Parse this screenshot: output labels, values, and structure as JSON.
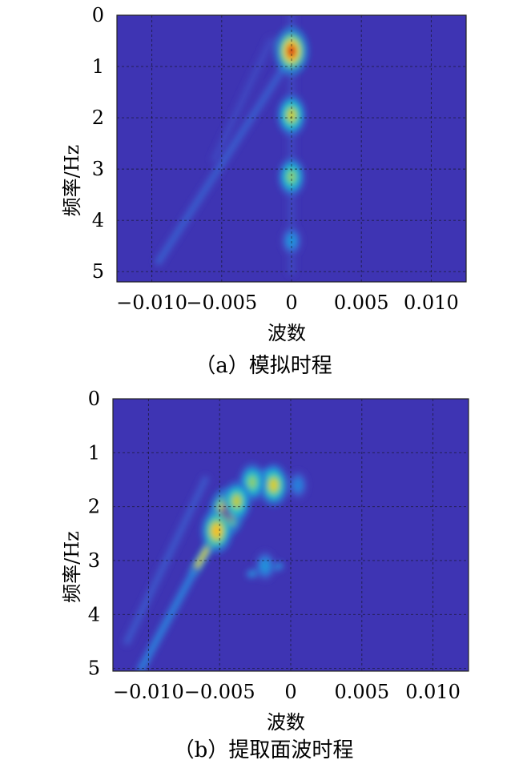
{
  "chart_data": [
    {
      "type": "heatmap",
      "panel": "a",
      "caption": "（a）模拟时程",
      "xlabel": "波数",
      "ylabel": "频率/Hz",
      "xlim": [
        -0.0125,
        0.0125
      ],
      "ylim": [
        0,
        5.2
      ],
      "y_inverted": true,
      "xticks": [
        -0.01,
        -0.005,
        0,
        0.005,
        0.01
      ],
      "xtick_labels": [
        "−0.010",
        "−0.005",
        "0",
        "0.005",
        "0.010"
      ],
      "yticks": [
        0,
        1,
        2,
        3,
        4,
        5
      ],
      "ytick_labels": [
        "0",
        "1",
        "2",
        "3",
        "4",
        "5"
      ],
      "grid": true,
      "colormap": "parula",
      "peaks": [
        {
          "x": 0.0,
          "y": 0.7,
          "value": 1.0
        },
        {
          "x": 0.0,
          "y": 1.95,
          "value": 0.72
        },
        {
          "x": 0.0,
          "y": 3.15,
          "value": 0.62
        },
        {
          "x": 0.0,
          "y": 4.4,
          "value": 0.3
        }
      ],
      "ridges": [
        {
          "x1": -0.0005,
          "y1": 1.0,
          "x2": -0.0095,
          "y2": 4.8,
          "value": 0.16
        },
        {
          "x1": -0.0015,
          "y1": 0.5,
          "x2": -0.0055,
          "y2": 2.8,
          "value": 0.1
        },
        {
          "x1": 0.0,
          "y1": 0.0,
          "x2": 0.0,
          "y2": 5.0,
          "value": 0.1
        }
      ]
    },
    {
      "type": "heatmap",
      "panel": "b",
      "caption": "（b）提取面波时程",
      "xlabel": "波数",
      "ylabel": "频率/Hz",
      "xlim": [
        -0.0125,
        0.0125
      ],
      "ylim": [
        0,
        5.05
      ],
      "y_inverted": true,
      "xticks": [
        -0.01,
        -0.005,
        0,
        0.005,
        0.01
      ],
      "xtick_labels": [
        "−0.010",
        "−0.005",
        "0",
        "0.005",
        "0.010"
      ],
      "yticks": [
        0,
        1,
        2,
        3,
        4,
        5
      ],
      "ytick_labels": [
        "0",
        "1",
        "2",
        "3",
        "4",
        "5"
      ],
      "grid": true,
      "colormap": "parula",
      "peaks": [
        {
          "x": -0.0045,
          "y": 2.1,
          "value": 1.0
        },
        {
          "x": -0.0052,
          "y": 2.45,
          "value": 0.85
        },
        {
          "x": -0.0012,
          "y": 1.6,
          "value": 0.75
        },
        {
          "x": -0.0027,
          "y": 1.55,
          "value": 0.62
        },
        {
          "x": -0.0038,
          "y": 1.9,
          "value": 0.7
        },
        {
          "x": -0.0018,
          "y": 3.1,
          "value": 0.3
        },
        {
          "x": 0.0005,
          "y": 1.6,
          "value": 0.25
        }
      ],
      "ridges": [
        {
          "x1": -0.0038,
          "y1": 1.85,
          "x2": -0.0068,
          "y2": 3.2,
          "value": 0.72
        },
        {
          "x1": -0.0068,
          "y1": 3.2,
          "x2": -0.0105,
          "y2": 5.0,
          "value": 0.25
        },
        {
          "x1": -0.0012,
          "y1": 1.35,
          "x2": -0.0025,
          "y2": 1.45,
          "value": 0.4
        },
        {
          "x1": -0.0028,
          "y1": 3.25,
          "x2": -0.0008,
          "y2": 3.1,
          "value": 0.28
        },
        {
          "x1": -0.006,
          "y1": 1.5,
          "x2": -0.0115,
          "y2": 4.5,
          "value": 0.14
        }
      ]
    }
  ]
}
